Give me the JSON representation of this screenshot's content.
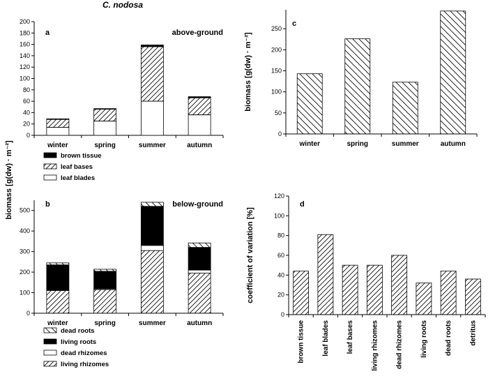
{
  "figure_title": "C. nodosa",
  "chart_data": [
    {
      "id": "a",
      "type": "bar",
      "stacked": true,
      "panel_label": "a",
      "subtitle": "above-ground",
      "ylabel": "biomass [g(dw) · m⁻²]",
      "categories": [
        "winter",
        "spring",
        "summer",
        "autumn"
      ],
      "ylim": [
        0,
        200
      ],
      "yticks": [
        0,
        20,
        40,
        60,
        80,
        100,
        120,
        140,
        160,
        180,
        200
      ],
      "series": [
        {
          "name": "leaf blades",
          "pattern": "white",
          "values": [
            14,
            25,
            60,
            36
          ]
        },
        {
          "name": "leaf bases",
          "pattern": "hatch-fwd",
          "values": [
            14,
            21,
            96,
            30
          ]
        },
        {
          "name": "brown tissue",
          "pattern": "black",
          "values": [
            1,
            1,
            3,
            2
          ]
        }
      ],
      "legend_order": [
        "brown tissue",
        "leaf bases",
        "leaf blades"
      ],
      "legend_position": "below"
    },
    {
      "id": "b",
      "type": "bar",
      "stacked": true,
      "panel_label": "b",
      "subtitle": "below-ground",
      "ylabel": "biomass [g(dw) · m⁻²]",
      "categories": [
        "winter",
        "spring",
        "summer",
        "autumn"
      ],
      "ylim": [
        0,
        550
      ],
      "yticks": [
        0,
        100,
        200,
        300,
        400,
        500
      ],
      "series": [
        {
          "name": "living rhizomes",
          "pattern": "hatch-fwd",
          "values": [
            110,
            115,
            305,
            195
          ]
        },
        {
          "name": "dead rhizomes",
          "pattern": "white",
          "values": [
            3,
            4,
            25,
            15
          ]
        },
        {
          "name": "living roots",
          "pattern": "black",
          "values": [
            122,
            85,
            190,
            110
          ]
        },
        {
          "name": "dead roots",
          "pattern": "hatch-back",
          "values": [
            10,
            10,
            20,
            22
          ]
        }
      ],
      "legend_order": [
        "dead roots",
        "living roots",
        "dead rhizomes",
        "living rhizomes"
      ],
      "legend_position": "below"
    },
    {
      "id": "c",
      "type": "bar",
      "panel_label": "c",
      "ylabel": "biomass [g(dw) · m⁻²]",
      "categories": [
        "winter",
        "spring",
        "summer",
        "autumn"
      ],
      "ylim": [
        0,
        295
      ],
      "yticks": [
        0,
        50,
        100,
        150,
        200,
        250
      ],
      "series": [
        {
          "pattern": "hatch-back",
          "values": [
            143,
            226,
            123,
            292
          ]
        }
      ]
    },
    {
      "id": "d",
      "type": "bar",
      "panel_label": "d",
      "ylabel": "coefficient of variation [%]",
      "categories": [
        "brown tissue",
        "leaf blades",
        "leaf bases",
        "living rhizomes",
        "dead rhizomes",
        "living roots",
        "dead roots",
        "detritus"
      ],
      "ylim": [
        0,
        120
      ],
      "yticks": [
        0,
        20,
        40,
        60,
        80,
        100,
        120
      ],
      "series": [
        {
          "pattern": "hatch-fwd",
          "values": [
            44,
            81,
            50,
            50,
            60,
            32,
            44,
            36
          ]
        }
      ]
    }
  ]
}
